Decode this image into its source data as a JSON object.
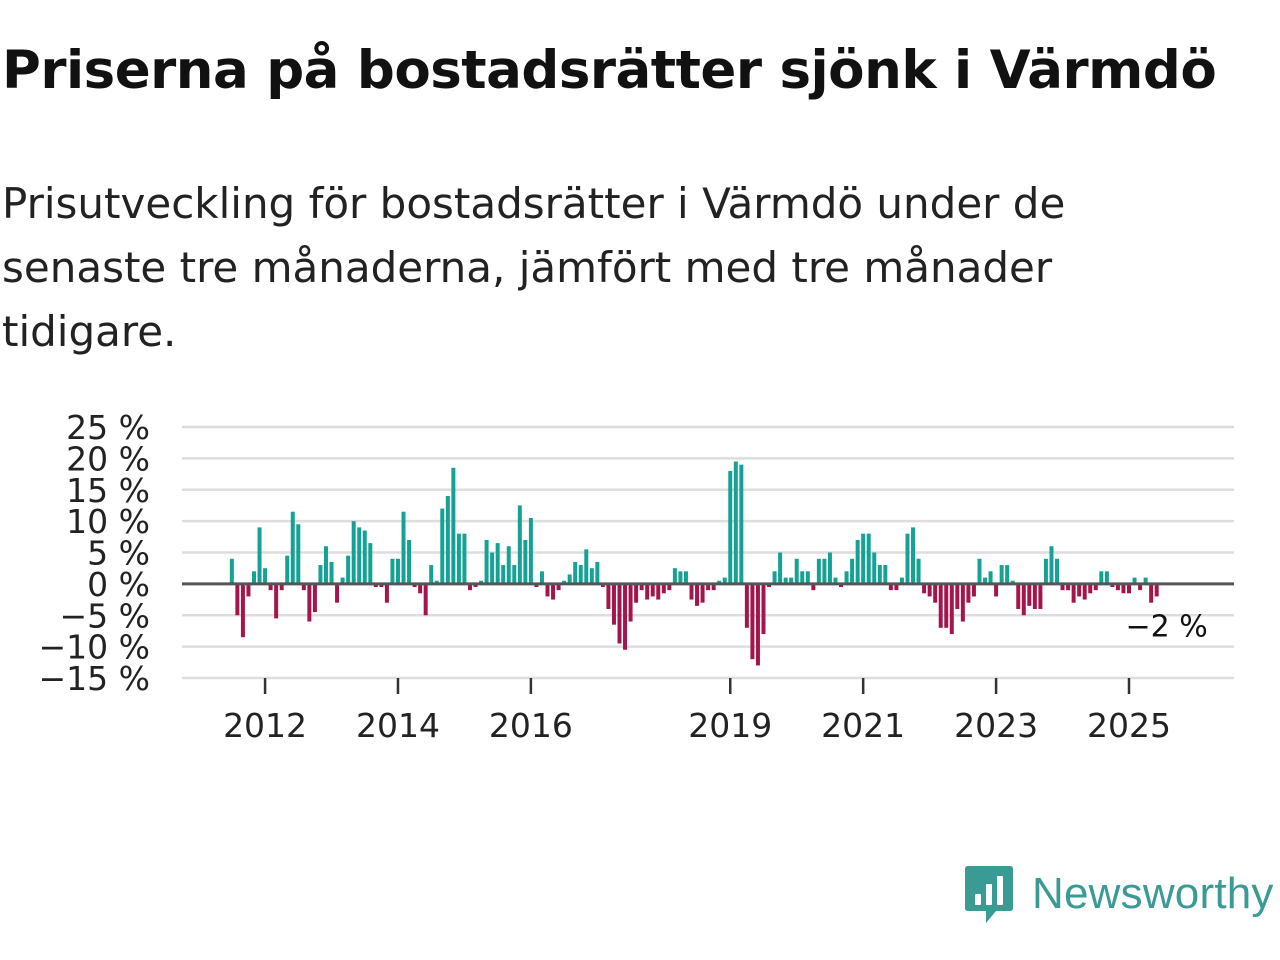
{
  "title": "Priserna på bostadsrätter sjönk i Värmdö",
  "subtitle": "Prisutveckling för bostadsrätter i Värmdö under de senaste tre månaderna, jämfört med tre månader tidigare.",
  "brand": {
    "name": "Newsworthy",
    "color": "#3a9a94",
    "icon": "newsworthy-logo-icon"
  },
  "colors": {
    "positive": "#14a295",
    "negative": "#a3154b",
    "zero_line": "#555555",
    "grid": "#dddddd"
  },
  "chart_data": {
    "type": "bar",
    "title": "Priserna på bostadsrätter sjönk i Värmdö",
    "xlabel": "",
    "ylabel": "",
    "ylim": [
      -15,
      25
    ],
    "yticks": [
      25,
      20,
      15,
      10,
      5,
      0,
      -5,
      -10,
      -15
    ],
    "ytick_labels": [
      "25 %",
      "20 %",
      "15 %",
      "10 %",
      "5 %",
      "0 %",
      "−5 %",
      "−10 %",
      "−15 %"
    ],
    "xtick_labels": [
      "2012",
      "2014",
      "2016",
      "2019",
      "2021",
      "2023",
      "2025"
    ],
    "xtick_positions": [
      2012,
      2014,
      2016,
      2019,
      2021,
      2023,
      2025
    ],
    "x_start": 2011.5,
    "step_months": 1,
    "x_range": [
      2010.75,
      2026.58
    ],
    "end_label": "−2 %",
    "values": [
      4,
      -5,
      -8.5,
      -2,
      2,
      9,
      2.5,
      -1,
      -5.5,
      -1,
      4.5,
      11.5,
      9.5,
      -1,
      -6,
      -4.5,
      3,
      6,
      3.5,
      -3,
      1,
      4.5,
      10,
      9,
      8.5,
      6.5,
      -0.5,
      -0.5,
      -3,
      4,
      4,
      11.5,
      7,
      -0.5,
      -1.5,
      -5,
      3,
      0.5,
      12,
      14,
      18.5,
      8,
      8,
      -1,
      -0.5,
      0.5,
      7,
      5,
      6.5,
      3,
      6,
      3,
      12.5,
      7,
      10.5,
      -0.5,
      2,
      -2,
      -2.5,
      -1,
      0.5,
      1.5,
      3.5,
      3,
      5.5,
      2.5,
      3.5,
      -0.5,
      -4,
      -6.5,
      -9.5,
      -10.5,
      -6,
      -3,
      -1,
      -2.5,
      -2,
      -2.5,
      -1.5,
      -1,
      2.5,
      2,
      2,
      -2.5,
      -3.5,
      -3,
      -1,
      -1,
      0.5,
      1,
      18,
      19.5,
      19,
      -7,
      -12,
      -13,
      -8,
      -0.5,
      2,
      5,
      1,
      1,
      4,
      2,
      2,
      -1,
      4,
      4,
      5,
      1,
      -0.5,
      2,
      4,
      7,
      8,
      8,
      5,
      3,
      3,
      -1,
      -1,
      1,
      8,
      9,
      4,
      -1.5,
      -2,
      -3,
      -7,
      -7,
      -8,
      -4,
      -6,
      -3,
      -2,
      4,
      1,
      2,
      -2,
      3,
      3,
      0.5,
      -4,
      -5,
      -3.5,
      -4,
      -4,
      4,
      6,
      4,
      -1,
      -1,
      -3,
      -2,
      -2.5,
      -1.5,
      -1,
      2,
      2,
      -0.5,
      -1,
      -1.5,
      -1.5,
      1,
      -1,
      1,
      -3,
      -2
    ]
  }
}
